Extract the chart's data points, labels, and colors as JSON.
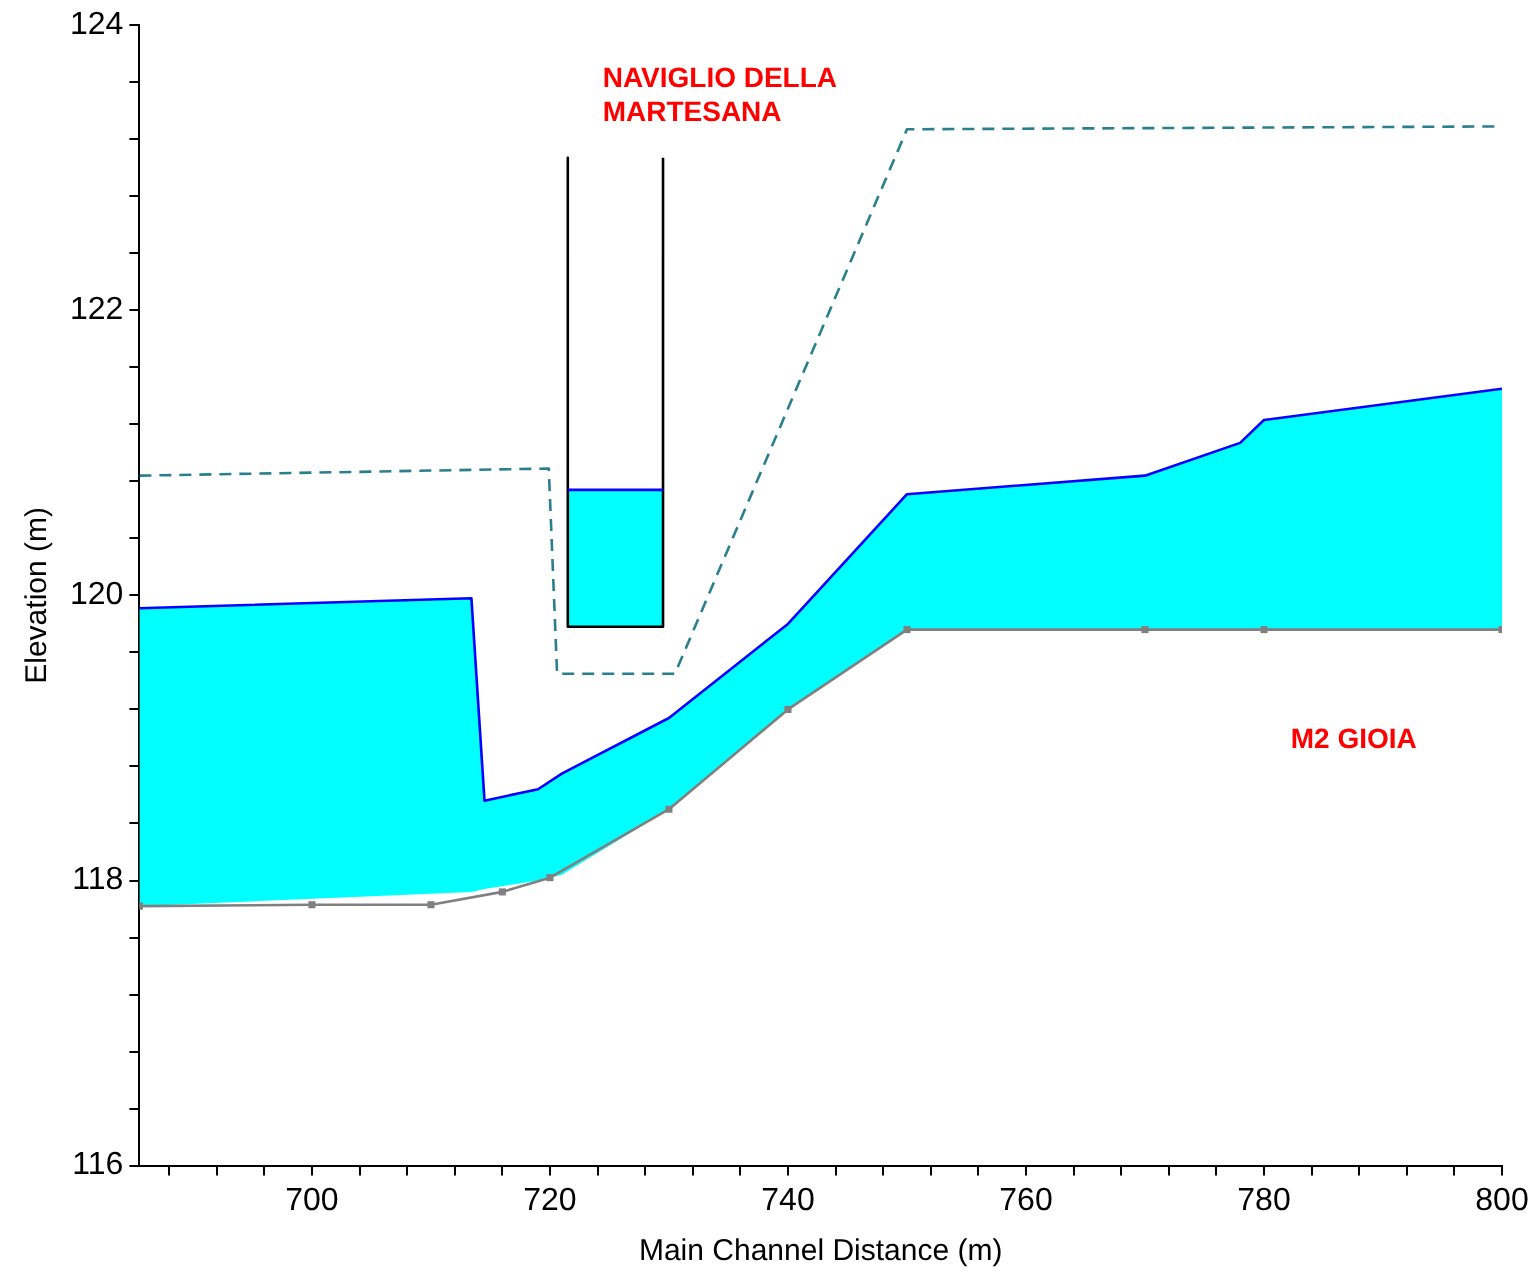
{
  "chart_data": {
    "type": "line",
    "xlabel": "Main Channel Distance (m)",
    "ylabel": "Elevation (m)",
    "xlim": [
      685.5,
      800
    ],
    "ylim": [
      116,
      124
    ],
    "xticks": [
      {
        "value": 688,
        "label": null
      },
      {
        "value": 692,
        "label": null
      },
      {
        "value": 696,
        "label": null
      },
      700,
      {
        "value": 704,
        "label": null
      },
      {
        "value": 708,
        "label": null
      },
      {
        "value": 712,
        "label": null
      },
      {
        "value": 716,
        "label": null
      },
      720,
      {
        "value": 724,
        "label": null
      },
      {
        "value": 728,
        "label": null
      },
      {
        "value": 732,
        "label": null
      },
      {
        "value": 736,
        "label": null
      },
      740,
      {
        "value": 744,
        "label": null
      },
      {
        "value": 748,
        "label": null
      },
      {
        "value": 752,
        "label": null
      },
      {
        "value": 756,
        "label": null
      },
      760,
      {
        "value": 764,
        "label": null
      },
      {
        "value": 768,
        "label": null
      },
      {
        "value": 772,
        "label": null
      },
      {
        "value": 776,
        "label": null
      },
      780,
      {
        "value": 784,
        "label": null
      },
      {
        "value": 788,
        "label": null
      },
      {
        "value": 792,
        "label": null
      },
      {
        "value": 796,
        "label": null
      },
      800
    ],
    "yticks": [
      116,
      {
        "value": 116.4,
        "label": null
      },
      {
        "value": 116.8,
        "label": null
      },
      {
        "value": 117.2,
        "label": null
      },
      {
        "value": 117.6,
        "label": null
      },
      118,
      {
        "value": 118.4,
        "label": null
      },
      {
        "value": 118.8,
        "label": null
      },
      {
        "value": 119.2,
        "label": null
      },
      {
        "value": 119.6,
        "label": null
      },
      120,
      {
        "value": 120.4,
        "label": null
      },
      {
        "value": 120.8,
        "label": null
      },
      {
        "value": 121.2,
        "label": null
      },
      {
        "value": 121.6,
        "label": null
      },
      122,
      {
        "value": 122.4,
        "label": null
      },
      {
        "value": 122.8,
        "label": null
      },
      {
        "value": 123.2,
        "label": null
      },
      {
        "value": 123.6,
        "label": null
      },
      124
    ],
    "grid": false,
    "legend": false,
    "series": [
      {
        "type": "line",
        "color": "#0000ff",
        "marker": "none",
        "x": [
          685.5,
          713.4,
          714.5,
          719,
          721,
          730,
          740,
          750,
          770,
          778,
          780,
          800
        ],
        "values": [
          119.91,
          119.98,
          118.56,
          118.64,
          118.75,
          119.14,
          119.8,
          120.71,
          120.84,
          121.07,
          121.23,
          121.45
        ],
        "upper": [
          119.91,
          119.98,
          118.56,
          118.64,
          118.75,
          119.14,
          119.8,
          120.71,
          120.84,
          121.07,
          121.23,
          121.45
        ],
        "lower": [
          117.82,
          117.92,
          117.94,
          118.0,
          118.04,
          118.5,
          119.2,
          119.76,
          119.76,
          119.76,
          119.76,
          119.76
        ]
      },
      {
        "type": "line",
        "color": "#0000ff",
        "marker": "none",
        "x": [
          721.5,
          729.5
        ],
        "values": [
          120.74,
          120.74
        ],
        "upper": [
          120.74,
          120.74
        ],
        "lower": [
          119.78,
          119.78
        ]
      },
      {
        "type": "line",
        "color": "#000000",
        "x": [
          721.5,
          721.5,
          729.5,
          729.5
        ],
        "values": [
          123.07,
          119.78,
          119.78,
          123.07
        ],
        "marker": "none"
      },
      {
        "type": "line",
        "color": "#2a7f8f",
        "line_style": "dashed",
        "marker": "none",
        "x": [
          685.5,
          719.9,
          720.6,
          730.5,
          750,
          800
        ],
        "values": [
          120.84,
          120.89,
          119.45,
          119.45,
          123.27,
          123.29
        ]
      },
      {
        "type": "line",
        "color": "#808080",
        "marker": "square",
        "x": [
          685.5,
          700,
          710,
          716,
          720,
          730,
          740,
          750,
          770,
          780,
          800
        ],
        "values": [
          117.82,
          117.83,
          117.83,
          117.92,
          118.02,
          118.5,
          119.2,
          119.76,
          119.76,
          119.76,
          119.76
        ]
      }
    ],
    "annotations": [
      "NAVIGLIO DELLA MARTESANA",
      "M2 GIOIA"
    ]
  }
}
